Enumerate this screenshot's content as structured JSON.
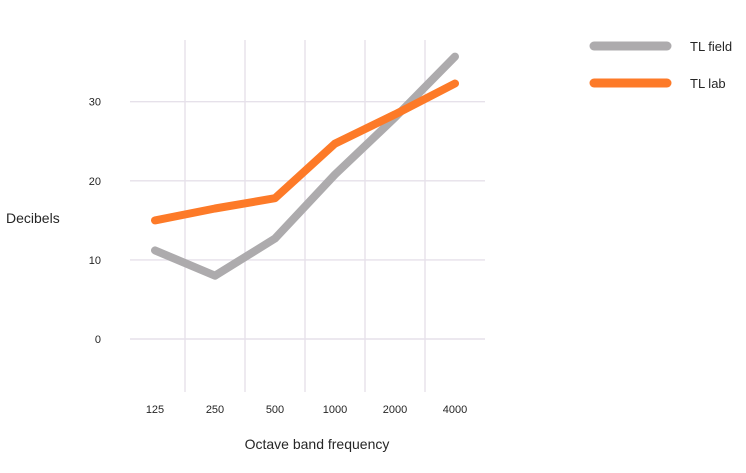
{
  "chart_data": {
    "type": "line",
    "categories": [
      "125",
      "250",
      "500",
      "1000",
      "2000",
      "4000"
    ],
    "series": [
      {
        "name": "TL field",
        "color": "#adabad",
        "values": [
          11.2,
          8.0,
          12.7,
          20.8,
          28.0,
          35.7
        ]
      },
      {
        "name": "TL lab",
        "color": "#fd7a28",
        "values": [
          15.0,
          16.5,
          17.8,
          24.7,
          28.4,
          32.3
        ]
      }
    ],
    "title": "",
    "xlabel": "Octave band frequency",
    "ylabel": "Decibels",
    "yticks": [
      0,
      10,
      20,
      30
    ],
    "ylim": [
      -6.7,
      37.8
    ],
    "grid": true,
    "legend_position": "top-right"
  }
}
